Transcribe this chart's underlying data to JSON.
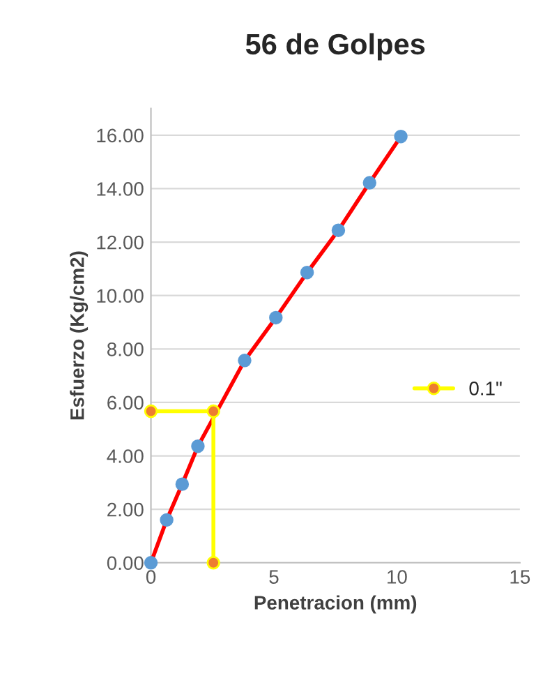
{
  "chart_data": {
    "type": "line",
    "title": "56 de Golpes",
    "xlabel": "Penetracion (mm)",
    "ylabel": "Esfuerzo (Kg/cm2)",
    "series": [
      {
        "color": "#ff0000",
        "colors": [
          "#5b9bd5",
          "#5b9bd5",
          "#5b9bd5",
          "#5b9bd5",
          "#5b9bd5",
          "#5b9bd5",
          "#5b9bd5",
          "#5b9bd5",
          "#5b9bd5",
          "#5b9bd5"
        ],
        "x": [
          0,
          0.64,
          1.27,
          1.91,
          3.81,
          5.08,
          6.35,
          7.62,
          8.89,
          10.16
        ],
        "values": [
          0,
          1.6,
          2.94,
          4.36,
          7.57,
          9.17,
          10.86,
          12.44,
          14.22,
          15.95
        ]
      },
      {
        "name": "0.1\"",
        "color": "#ffff00",
        "colors": [
          "#ed7d31",
          "#ed7d31",
          "#ed7d31"
        ],
        "x": [
          0,
          2.54,
          2.54
        ],
        "values": [
          5.67,
          5.67,
          0
        ]
      }
    ],
    "xlim": [
      0,
      15
    ],
    "xticks": [
      0,
      5,
      10,
      15
    ],
    "ylim": [
      0,
      17
    ],
    "yticks": [
      {
        "value": 0,
        "label": "0.00"
      },
      {
        "value": 2,
        "label": "2.00"
      },
      {
        "value": 4,
        "label": "4.00"
      },
      {
        "value": 6,
        "label": "6.00"
      },
      {
        "value": 8,
        "label": "8.00"
      },
      {
        "value": 10,
        "label": "10.00"
      },
      {
        "value": 12,
        "label": "12.00"
      },
      {
        "value": 14,
        "label": "14.00"
      },
      {
        "value": 16,
        "label": "16.00"
      }
    ],
    "grid": "y",
    "legend": "right",
    "marker": "circle"
  }
}
